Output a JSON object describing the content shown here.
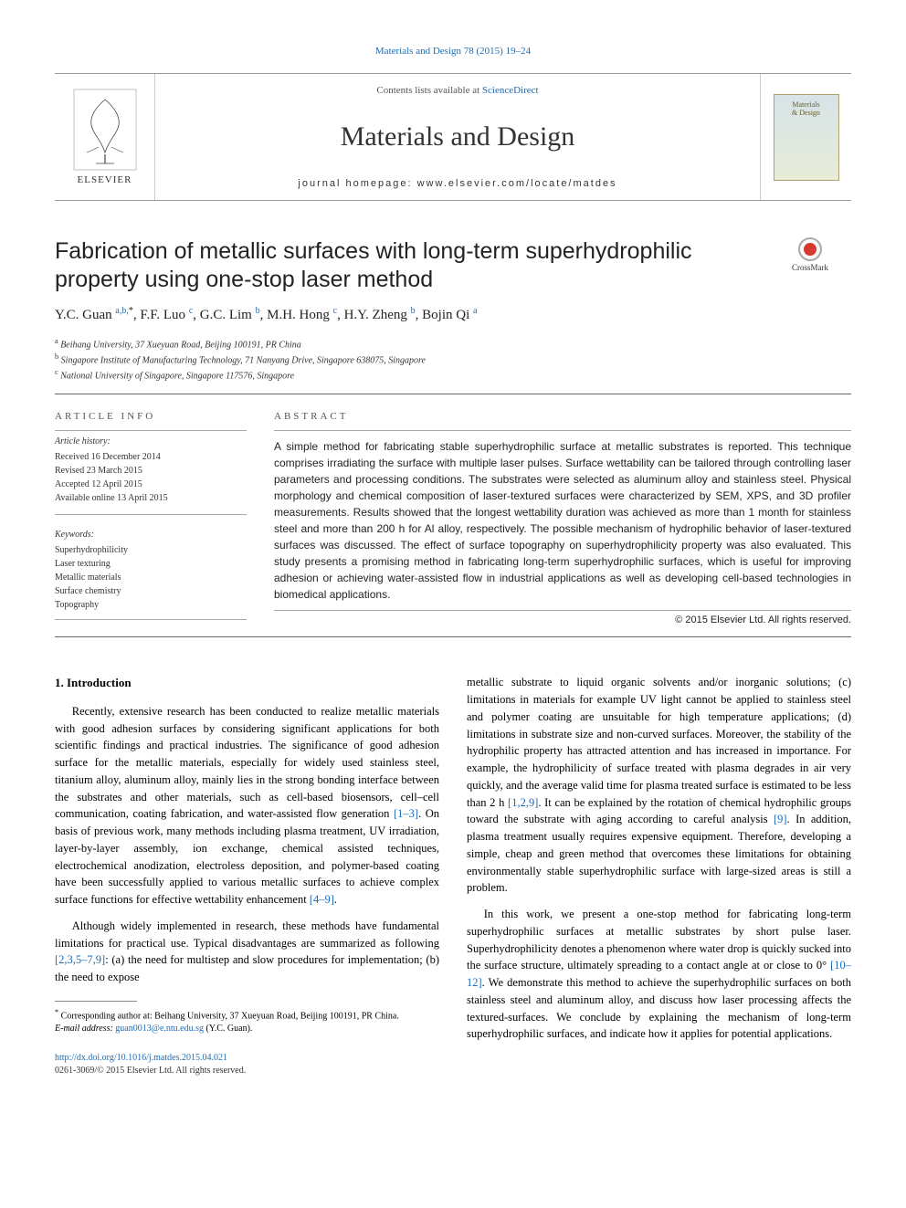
{
  "top_citation": "Materials and Design 78 (2015) 19–24",
  "masthead": {
    "elsevier_label": "ELSEVIER",
    "contents_available": "Contents lists available at",
    "sciencedirect": "ScienceDirect",
    "journal_name": "Materials and Design",
    "homepage_prefix": "journal homepage:",
    "homepage_url": "www.elsevier.com/locate/matdes",
    "cover_title_1": "Materials",
    "cover_title_2": "& Design"
  },
  "crossmark_label": "CrossMark",
  "title": "Fabrication of metallic surfaces with long-term superhydrophilic property using one-stop laser method",
  "authors_html": "Y.C. Guan <sup class=\"aff-link\">a,b,</sup><sup>*</sup>, F.F. Luo <sup class=\"aff-link\">c</sup>, G.C. Lim <sup class=\"aff-link\">b</sup>, M.H. Hong <sup class=\"aff-link\">c</sup>, H.Y. Zheng <sup class=\"aff-link\">b</sup>, Bojin Qi <sup class=\"aff-link\">a</sup>",
  "affiliations": {
    "a": "Beihang University, 37 Xueyuan Road, Beijing 100191, PR China",
    "b": "Singapore Institute of Manufacturing Technology, 71 Nanyang Drive, Singapore 638075, Singapore",
    "c": "National University of Singapore, Singapore 117576, Singapore"
  },
  "article_info": {
    "label": "article info",
    "history_head": "Article history:",
    "received": "Received 16 December 2014",
    "revised": "Revised 23 March 2015",
    "accepted": "Accepted 12 April 2015",
    "online": "Available online 13 April 2015",
    "keywords_head": "Keywords:",
    "keywords": [
      "Superhydrophilicity",
      "Laser texturing",
      "Metallic materials",
      "Surface chemistry",
      "Topography"
    ]
  },
  "abstract": {
    "label": "abstract",
    "text": "A simple method for fabricating stable superhydrophilic surface at metallic substrates is reported. This technique comprises irradiating the surface with multiple laser pulses. Surface wettability can be tailored through controlling laser parameters and processing conditions. The substrates were selected as aluminum alloy and stainless steel. Physical morphology and chemical composition of laser-textured surfaces were characterized by SEM, XPS, and 3D profiler measurements. Results showed that the longest wettability duration was achieved as more than 1 month for stainless steel and more than 200 h for Al alloy, respectively. The possible mechanism of hydrophilic behavior of laser-textured surfaces was discussed. The effect of surface topography on superhydrophilicity property was also evaluated. This study presents a promising method in fabricating long-term superhydrophilic surfaces, which is useful for improving adhesion or achieving water-assisted flow in industrial applications as well as developing cell-based technologies in biomedical applications.",
    "copyright": "© 2015 Elsevier Ltd. All rights reserved."
  },
  "body": {
    "section_heading": "1. Introduction",
    "col1_p1_a": "Recently, extensive research has been conducted to realize metallic materials with good adhesion surfaces by considering significant applications for both scientific findings and practical industries. The significance of good adhesion surface for the metallic materials, especially for widely used stainless steel, titanium alloy, aluminum alloy, mainly lies in the strong bonding interface between the substrates and other materials, such as cell-based biosensors, cell–cell communication, coating fabrication, and water-assisted flow generation ",
    "cite_1_3": "[1–3]",
    "col1_p1_b": ". On basis of previous work, many methods including plasma treatment, UV irradiation, layer-by-layer assembly, ion exchange, chemical assisted techniques, electrochemical anodization, electroless deposition, and polymer-based coating have been successfully applied to various metallic surfaces to achieve complex surface functions for effective wettability enhancement ",
    "cite_4_9": "[4–9]",
    "col1_p1_c": ".",
    "col1_p2_a": "Although widely implemented in research, these methods have fundamental limitations for practical use. Typical disadvantages are summarized as following ",
    "cite_2357_9": "[2,3,5–7,9]",
    "col1_p2_b": ": (a) the need for multistep and slow procedures for implementation; (b) the need to expose",
    "col2_p1_a": "metallic substrate to liquid organic solvents and/or inorganic solutions; (c) limitations in materials for example UV light cannot be applied to stainless steel and polymer coating are unsuitable for high temperature applications; (d) limitations in substrate size and non-curved surfaces. Moreover, the stability of the hydrophilic property has attracted attention and has increased in importance. For example, the hydrophilicity of surface treated with plasma degrades in air very quickly, and the average valid time for plasma treated surface is estimated to be less than 2 h ",
    "cite_1_2_9": "[1,2,9]",
    "col2_p1_b": ". It can be explained by the rotation of chemical hydrophilic groups toward the substrate with aging according to careful analysis ",
    "cite_9": "[9]",
    "col2_p1_c": ". In addition, plasma treatment usually requires expensive equipment. Therefore, developing a simple, cheap and green method that overcomes these limitations for obtaining environmentally stable superhydrophilic surface with large-sized areas is still a problem.",
    "col2_p2_a": "In this work, we present a one-stop method for fabricating long-term superhydrophilic surfaces at metallic substrates by short pulse laser. Superhydrophilicity denotes a phenomenon where water drop is quickly sucked into the surface structure, ultimately spreading to a contact angle at or close to 0° ",
    "cite_10_12": "[10–12]",
    "col2_p2_b": ". We demonstrate this method to achieve the superhydrophilic surfaces on both stainless steel and aluminum alloy, and discuss how laser processing affects the textured-surfaces. We conclude by explaining the mechanism of long-term superhydrophilic surfaces, and indicate how it applies for potential applications."
  },
  "footnotes": {
    "corr_symbol": "*",
    "corr_text": "Corresponding author at: Beihang University, 37 Xueyuan Road, Beijing 100191, PR China.",
    "email_label": "E-mail address:",
    "email": "guan0013@e.ntu.edu.sg",
    "email_name": " (Y.C. Guan)."
  },
  "bottom": {
    "doi": "http://dx.doi.org/10.1016/j.matdes.2015.04.021",
    "issn_line": "0261-3069/© 2015 Elsevier Ltd. All rights reserved."
  },
  "colors": {
    "link": "#1f6bb5",
    "text": "#000000",
    "rule": "#666666"
  }
}
